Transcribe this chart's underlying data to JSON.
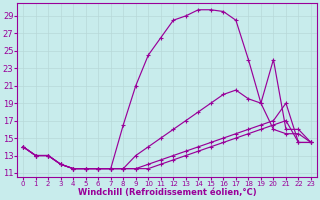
{
  "background_color": "#c8ecec",
  "grid_color": "#b8d8d8",
  "line_color": "#990099",
  "xlabel": "Windchill (Refroidissement éolien,°C)",
  "xlabel_fontsize": 6.0,
  "ytick_fontsize": 6.0,
  "xtick_fontsize": 5.0,
  "ylim": [
    10.5,
    30.5
  ],
  "xlim": [
    -0.5,
    23.5
  ],
  "yticks": [
    11,
    13,
    15,
    17,
    19,
    21,
    23,
    25,
    27,
    29
  ],
  "xticks": [
    0,
    1,
    2,
    3,
    4,
    5,
    6,
    7,
    8,
    9,
    10,
    11,
    12,
    13,
    14,
    15,
    16,
    17,
    18,
    19,
    20,
    21,
    22,
    23
  ],
  "line_top_x": [
    0,
    1,
    2,
    3,
    4,
    5,
    6,
    7,
    8,
    9,
    10,
    11,
    12,
    13,
    14,
    15,
    16,
    17,
    18,
    19,
    20,
    21,
    22,
    23
  ],
  "line_top_y": [
    14,
    13,
    13,
    12,
    11.5,
    11.5,
    11.5,
    11.5,
    16.5,
    21,
    24.5,
    26.5,
    28.5,
    29,
    29.7,
    29.7,
    29.5,
    28.5,
    24,
    19,
    16,
    15.5,
    15.5,
    14.5
  ],
  "line_mid_x": [
    0,
    1,
    2,
    3,
    4,
    5,
    6,
    7,
    8,
    9,
    10,
    11,
    12,
    13,
    14,
    15,
    16,
    17,
    18,
    19,
    20,
    21,
    22,
    23
  ],
  "line_mid_y": [
    14,
    13,
    13,
    12,
    11.5,
    11.5,
    11.5,
    11.5,
    11.5,
    13,
    14,
    15,
    16,
    17,
    18,
    19,
    20,
    20.5,
    19.5,
    19,
    24,
    16,
    16,
    14.5
  ],
  "line_low1_x": [
    0,
    1,
    2,
    3,
    4,
    5,
    6,
    7,
    8,
    9,
    10,
    11,
    12,
    13,
    14,
    15,
    16,
    17,
    18,
    19,
    20,
    21,
    22,
    23
  ],
  "line_low1_y": [
    14,
    13,
    13,
    12,
    11.5,
    11.5,
    11.5,
    11.5,
    11.5,
    11.5,
    12,
    12.5,
    13,
    13.5,
    14,
    14.5,
    15,
    15.5,
    16,
    16.5,
    17,
    19,
    14.5,
    14.5
  ],
  "line_low2_x": [
    0,
    1,
    2,
    3,
    4,
    5,
    6,
    7,
    8,
    9,
    10,
    11,
    12,
    13,
    14,
    15,
    16,
    17,
    18,
    19,
    20,
    21,
    22,
    23
  ],
  "line_low2_y": [
    14,
    13,
    13,
    12,
    11.5,
    11.5,
    11.5,
    11.5,
    11.5,
    11.5,
    11.5,
    12,
    12.5,
    13,
    13.5,
    14,
    14.5,
    15,
    15.5,
    16,
    16.5,
    17,
    14.5,
    14.5
  ]
}
